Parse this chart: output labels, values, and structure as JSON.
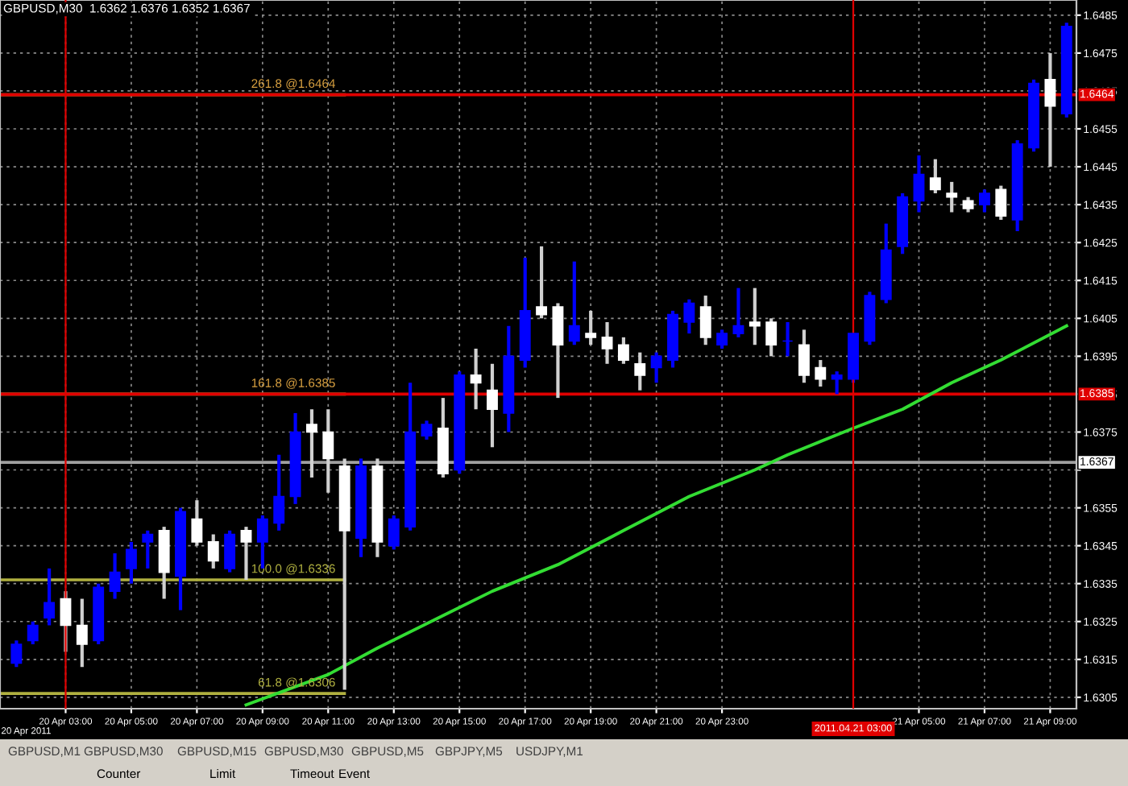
{
  "chart_data": {
    "type": "candlestick",
    "title": "GBPUSD,M30  1.6362 1.6376 1.6352 1.6367",
    "x": [
      "2011-04-20T01:30",
      "2011-04-20T02:00",
      "2011-04-20T02:30",
      "2011-04-20T03:00",
      "2011-04-20T03:30",
      "2011-04-20T04:00",
      "2011-04-20T04:30",
      "2011-04-20T05:00",
      "2011-04-20T05:30",
      "2011-04-20T06:00",
      "2011-04-20T06:30",
      "2011-04-20T07:00",
      "2011-04-20T07:30",
      "2011-04-20T08:00",
      "2011-04-20T08:30",
      "2011-04-20T09:00",
      "2011-04-20T09:30",
      "2011-04-20T10:00",
      "2011-04-20T10:30",
      "2011-04-20T11:00",
      "2011-04-20T11:30",
      "2011-04-20T12:00",
      "2011-04-20T12:30",
      "2011-04-20T13:00",
      "2011-04-20T13:30",
      "2011-04-20T14:00",
      "2011-04-20T14:30",
      "2011-04-20T15:00",
      "2011-04-20T15:30",
      "2011-04-20T16:00",
      "2011-04-20T16:30",
      "2011-04-20T17:00",
      "2011-04-20T17:30",
      "2011-04-20T18:00",
      "2011-04-20T18:30",
      "2011-04-20T19:00",
      "2011-04-20T19:30",
      "2011-04-20T20:00",
      "2011-04-20T20:30",
      "2011-04-20T21:00",
      "2011-04-20T21:30",
      "2011-04-20T22:00",
      "2011-04-20T22:30",
      "2011-04-20T23:00",
      "2011-04-20T23:30",
      "2011-04-21T00:00",
      "2011-04-21T00:30",
      "2011-04-21T01:00",
      "2011-04-21T01:30",
      "2011-04-21T02:00",
      "2011-04-21T02:30",
      "2011-04-21T03:00",
      "2011-04-21T03:30",
      "2011-04-21T04:00",
      "2011-04-21T04:30",
      "2011-04-21T05:00",
      "2011-04-21T05:30",
      "2011-04-21T06:00",
      "2011-04-21T06:30",
      "2011-04-21T07:00",
      "2011-04-21T07:30",
      "2011-04-21T08:00",
      "2011-04-21T08:30",
      "2011-04-21T09:00",
      "2011-04-21T09:30"
    ],
    "ohlc": [
      [
        1.6314,
        1.632,
        1.6313,
        1.6319
      ],
      [
        1.632,
        1.6325,
        1.6319,
        1.6324
      ],
      [
        1.6326,
        1.6339,
        1.6324,
        1.633
      ],
      [
        1.6331,
        1.6333,
        1.6317,
        1.6324
      ],
      [
        1.6324,
        1.6331,
        1.6313,
        1.6319
      ],
      [
        1.632,
        1.6335,
        1.6319,
        1.6334
      ],
      [
        1.6333,
        1.6343,
        1.6331,
        1.6338
      ],
      [
        1.6339,
        1.6346,
        1.6335,
        1.6344
      ],
      [
        1.6346,
        1.6349,
        1.6339,
        1.6348
      ],
      [
        1.6349,
        1.635,
        1.6331,
        1.6338
      ],
      [
        1.6337,
        1.6355,
        1.6328,
        1.6354
      ],
      [
        1.6352,
        1.6357,
        1.6345,
        1.6346
      ],
      [
        1.6346,
        1.6348,
        1.6339,
        1.6341
      ],
      [
        1.6339,
        1.6349,
        1.6338,
        1.6348
      ],
      [
        1.6349,
        1.635,
        1.6336,
        1.6346
      ],
      [
        1.6346,
        1.6353,
        1.6339,
        1.6352
      ],
      [
        1.6351,
        1.6369,
        1.6349,
        1.6358
      ],
      [
        1.6358,
        1.638,
        1.6356,
        1.6375
      ],
      [
        1.6377,
        1.6381,
        1.6363,
        1.6375
      ],
      [
        1.6375,
        1.6381,
        1.6359,
        1.6368
      ],
      [
        1.6366,
        1.6368,
        1.6307,
        1.6349
      ],
      [
        1.6347,
        1.6368,
        1.6342,
        1.6366
      ],
      [
        1.6366,
        1.6368,
        1.6342,
        1.6346
      ],
      [
        1.6345,
        1.6353,
        1.6344,
        1.6352
      ],
      [
        1.635,
        1.6388,
        1.6349,
        1.6375
      ],
      [
        1.6374,
        1.6378,
        1.6373,
        1.6377
      ],
      [
        1.6376,
        1.6384,
        1.6363,
        1.6364
      ],
      [
        1.6365,
        1.6391,
        1.6364,
        1.639
      ],
      [
        1.639,
        1.6397,
        1.6381,
        1.6388
      ],
      [
        1.6386,
        1.6393,
        1.6371,
        1.6381
      ],
      [
        1.638,
        1.6403,
        1.6375,
        1.6395
      ],
      [
        1.6394,
        1.6421,
        1.6392,
        1.6407
      ],
      [
        1.6408,
        1.6424,
        1.6405,
        1.6406
      ],
      [
        1.6408,
        1.6409,
        1.6384,
        1.6398
      ],
      [
        1.6399,
        1.642,
        1.6398,
        1.6403
      ],
      [
        1.6401,
        1.6407,
        1.6398,
        1.64
      ],
      [
        1.64,
        1.6404,
        1.6393,
        1.6397
      ],
      [
        1.6398,
        1.64,
        1.6393,
        1.6394
      ],
      [
        1.6393,
        1.6396,
        1.6386,
        1.639
      ],
      [
        1.6392,
        1.6396,
        1.6388,
        1.6395
      ],
      [
        1.6394,
        1.6407,
        1.6392,
        1.6406
      ],
      [
        1.6404,
        1.641,
        1.6401,
        1.6409
      ],
      [
        1.6408,
        1.6411,
        1.6398,
        1.64
      ],
      [
        1.6398,
        1.6402,
        1.6397,
        1.6401
      ],
      [
        1.6401,
        1.6413,
        1.64,
        1.6403
      ],
      [
        1.6404,
        1.6413,
        1.6398,
        1.6403
      ],
      [
        1.6404,
        1.6405,
        1.6395,
        1.6398
      ],
      [
        1.6399,
        1.6404,
        1.6395,
        1.6399
      ],
      [
        1.6398,
        1.6402,
        1.6388,
        1.639
      ],
      [
        1.6392,
        1.6394,
        1.6387,
        1.6389
      ],
      [
        1.6389,
        1.6391,
        1.6385,
        1.639
      ],
      [
        1.6389,
        1.6401,
        1.6388,
        1.6401
      ],
      [
        1.6399,
        1.6412,
        1.6398,
        1.6411
      ],
      [
        1.641,
        1.643,
        1.6409,
        1.6423
      ],
      [
        1.6424,
        1.6438,
        1.6422,
        1.6437
      ],
      [
        1.6436,
        1.6448,
        1.6433,
        1.6443
      ],
      [
        1.6442,
        1.6447,
        1.6438,
        1.6439
      ],
      [
        1.6438,
        1.6441,
        1.6433,
        1.6437
      ],
      [
        1.6436,
        1.6437,
        1.6433,
        1.6434
      ],
      [
        1.6435,
        1.6439,
        1.6433,
        1.6438
      ],
      [
        1.6439,
        1.644,
        1.6431,
        1.6432
      ],
      [
        1.6431,
        1.6452,
        1.6428,
        1.6451
      ],
      [
        1.645,
        1.6468,
        1.6449,
        1.6467
      ],
      [
        1.6468,
        1.6475,
        1.6445,
        1.6461
      ],
      [
        1.6459,
        1.6483,
        1.6458,
        1.6482
      ]
    ],
    "colors": [
      "#0000ff",
      "#0000ff",
      "#0000ff",
      "#ffffff",
      "#ffffff",
      "#0000ff",
      "#0000ff",
      "#0000ff",
      "#0000ff",
      "#ffffff",
      "#0000ff",
      "#ffffff",
      "#ffffff",
      "#0000ff",
      "#ffffff",
      "#0000ff",
      "#0000ff",
      "#0000ff",
      "#ffffff",
      "#ffffff",
      "#ffffff",
      "#0000ff",
      "#ffffff",
      "#0000ff",
      "#0000ff",
      "#0000ff",
      "#ffffff",
      "#0000ff",
      "#ffffff",
      "#ffffff",
      "#0000ff",
      "#0000ff",
      "#ffffff",
      "#ffffff",
      "#0000ff",
      "#ffffff",
      "#ffffff",
      "#ffffff",
      "#ffffff",
      "#0000ff",
      "#0000ff",
      "#0000ff",
      "#ffffff",
      "#0000ff",
      "#0000ff",
      "#ffffff",
      "#ffffff",
      "#0000ff",
      "#ffffff",
      "#ffffff",
      "#0000ff",
      "#0000ff",
      "#0000ff",
      "#0000ff",
      "#0000ff",
      "#0000ff",
      "#ffffff",
      "#ffffff",
      "#ffffff",
      "#0000ff",
      "#ffffff",
      "#0000ff",
      "#0000ff",
      "#ffffff",
      "#0000ff"
    ],
    "series": [
      {
        "type": "line",
        "color": "#33dd33",
        "x": [
          "2011-04-20T08:30",
          "2011-04-20T11:00",
          "2011-04-20T12:30",
          "2011-04-20T16:00",
          "2011-04-20T18:00",
          "2011-04-20T20:00",
          "2011-04-20T22:00",
          "2011-04-21T00:00",
          "2011-04-21T01:00",
          "2011-04-21T03:00",
          "2011-04-21T04:30",
          "2011-04-21T06:00",
          "2011-04-21T07:30",
          "2011-04-21T09:30"
        ],
        "values": [
          1.6303,
          1.6311,
          1.6318,
          1.6333,
          1.634,
          1.6349,
          1.6358,
          1.6365,
          1.6369,
          1.6376,
          1.6381,
          1.6388,
          1.6394,
          1.6403
        ]
      }
    ],
    "xlim": [
      "2011-04-20T01:00",
      "2011-04-21T09:48"
    ],
    "ylim": [
      1.6302,
      1.6489
    ],
    "xticks": [
      {
        "value": "2011-04-20T03:00",
        "label": "20 Apr 03:00"
      },
      {
        "value": "2011-04-20T05:00",
        "label": "20 Apr 05:00"
      },
      {
        "value": "2011-04-20T07:00",
        "label": "20 Apr 07:00"
      },
      {
        "value": "2011-04-20T09:00",
        "label": "20 Apr 09:00"
      },
      {
        "value": "2011-04-20T11:00",
        "label": "20 Apr 11:00"
      },
      {
        "value": "2011-04-20T13:00",
        "label": "20 Apr 13:00"
      },
      {
        "value": "2011-04-20T15:00",
        "label": "20 Apr 15:00"
      },
      {
        "value": "2011-04-20T17:00",
        "label": "20 Apr 17:00"
      },
      {
        "value": "2011-04-20T19:00",
        "label": "20 Apr 19:00"
      },
      {
        "value": "2011-04-20T21:00",
        "label": "20 Apr 21:00"
      },
      {
        "value": "2011-04-20T23:00",
        "label": "20 Apr 23:00"
      },
      {
        "value": "2011-04-21T05:00",
        "label": "21 Apr 05:00"
      },
      {
        "value": "2011-04-21T07:00",
        "label": "21 Apr 07:00"
      },
      {
        "value": "2011-04-21T09:00",
        "label": "21 Apr 09:00"
      }
    ],
    "yticks": [
      1.6305,
      1.6315,
      1.6325,
      1.6335,
      1.6345,
      1.6355,
      {
        "value": 1.6365,
        "label": null
      },
      1.6375,
      1.6385,
      1.6395,
      1.6405,
      1.6415,
      1.6425,
      1.6435,
      1.6445,
      1.6455,
      1.6465,
      1.6475,
      1.6485
    ],
    "grid": true,
    "ref_lines": [
      {
        "axis": "y",
        "value": 1.6464,
        "label": "261.8 @1.6464",
        "color": "#d8a040"
      },
      {
        "axis": "y",
        "value": 1.6385,
        "label": "161.8 @1.6385",
        "color": "#d8a040"
      },
      {
        "axis": "y",
        "value": 1.6336,
        "label": "100.0 @1.6336",
        "color": "#b0b040"
      },
      {
        "axis": "y",
        "value": 1.6306,
        "label": "61.8 @1.6306",
        "color": "#b0b040"
      },
      {
        "axis": "y",
        "value": 1.6464,
        "label": "1.6464",
        "color": "#e00000"
      },
      {
        "axis": "y",
        "value": 1.6385,
        "label": "1.6385",
        "color": "#e00000"
      },
      {
        "axis": "y",
        "value": 1.6367,
        "label": "1.6367",
        "color": "#a0a0a0"
      },
      {
        "axis": "x",
        "value": "2011-04-20T03:00",
        "color": "#e00000"
      },
      {
        "axis": "x",
        "value": "2011-04-21T03:00",
        "label": "2011.04.21 03:00",
        "color": "#e00000"
      }
    ],
    "annotations": [
      "20 Apr 2011",
      "GBPUSD,M1",
      "GBPUSD,M30",
      "GBPUSD,M15",
      "GBPUSD,M30",
      "GBPUSD,M5",
      "GBPJPY,M5",
      "USDJPY,M1",
      "Counter",
      "Limit",
      "Timeout",
      "Event"
    ]
  }
}
